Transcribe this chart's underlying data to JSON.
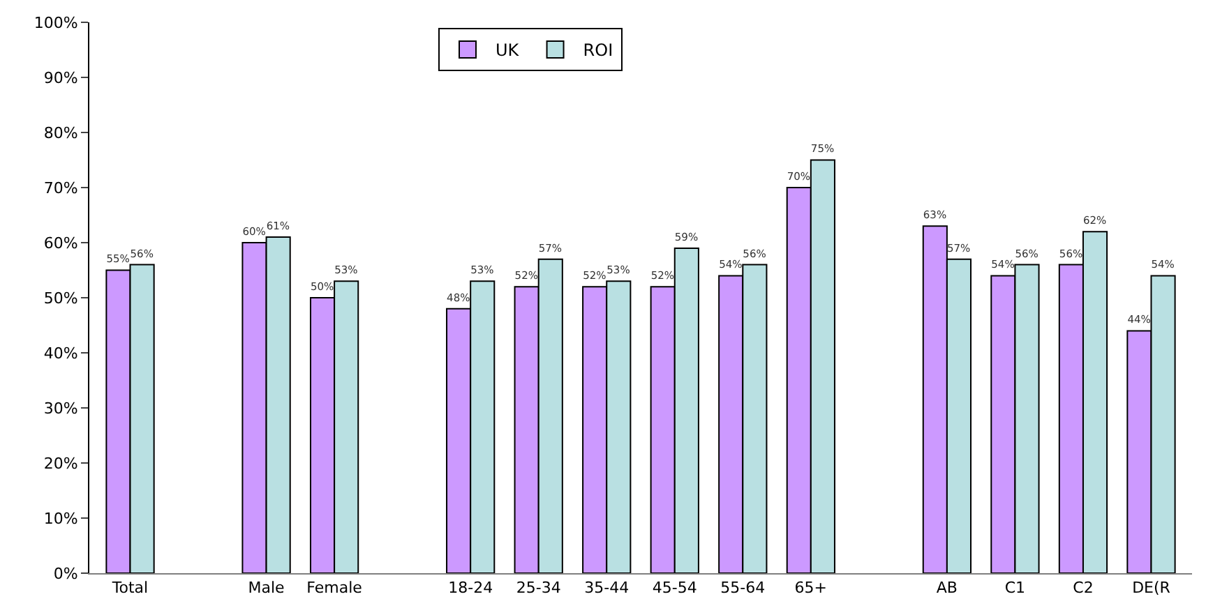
{
  "chart_data": {
    "type": "bar",
    "categories": [
      "Total",
      null,
      "Male",
      "Female",
      null,
      "18-24",
      "25-34",
      "35-44",
      "45-54",
      "55-64",
      "65+",
      null,
      "AB",
      "C1",
      "C2",
      "DE(R"
    ],
    "series": [
      {
        "name": "UK",
        "color": "#cc99ff",
        "values": [
          55,
          null,
          60,
          50,
          null,
          48,
          52,
          52,
          52,
          54,
          70,
          null,
          63,
          54,
          56,
          44
        ],
        "value_labels": [
          "55%",
          null,
          "60%",
          "50%",
          null,
          "48%",
          "52%",
          "52%",
          "52%",
          "54%",
          "70%",
          null,
          "63%",
          "54%",
          "56%",
          "44%"
        ]
      },
      {
        "name": "ROI",
        "color": "#b9e0e2",
        "values": [
          56,
          null,
          61,
          53,
          null,
          53,
          57,
          53,
          59,
          56,
          75,
          null,
          57,
          56,
          62,
          54
        ],
        "value_labels": [
          "56%",
          null,
          "61%",
          "53%",
          null,
          "53%",
          "57%",
          "53%",
          "59%",
          "56%",
          "75%",
          null,
          "57%",
          "56%",
          "62%",
          "54%"
        ]
      }
    ],
    "ylim": [
      0,
      100
    ],
    "yticks": [
      {
        "value": 0,
        "label": "0%"
      },
      {
        "value": 10,
        "label": "10%"
      },
      {
        "value": 20,
        "label": "20%"
      },
      {
        "value": 30,
        "label": "30%"
      },
      {
        "value": 40,
        "label": "40%"
      },
      {
        "value": 50,
        "label": "50%"
      },
      {
        "value": 60,
        "label": "60%"
      },
      {
        "value": 70,
        "label": "70%"
      },
      {
        "value": 80,
        "label": "80%"
      },
      {
        "value": 90,
        "label": "90%"
      },
      {
        "value": 100,
        "label": "100%"
      }
    ],
    "legend": "top"
  }
}
